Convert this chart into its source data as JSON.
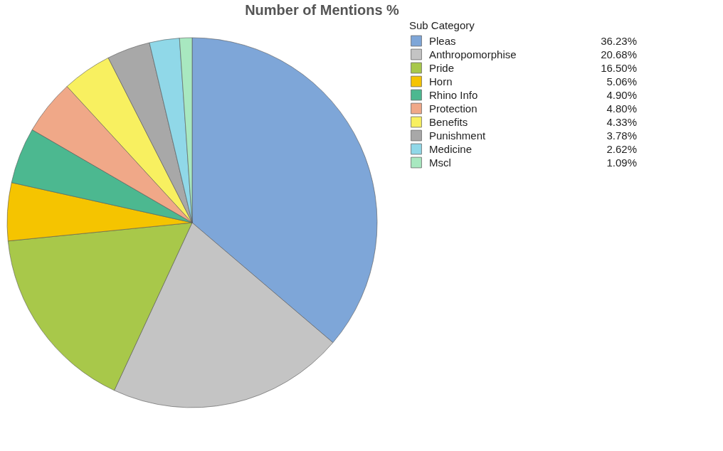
{
  "chart_data": {
    "type": "pie",
    "title": "Number of Mentions %",
    "legend_title": "Sub Category",
    "legend": "right",
    "categories": [
      "Pleas",
      "Anthropomorphise",
      "Pride",
      "Horn",
      "Rhino Info",
      "Protection",
      "Benefits",
      "Punishment",
      "Medicine",
      "Mscl"
    ],
    "values": [
      36.23,
      20.68,
      16.5,
      5.06,
      4.9,
      4.8,
      4.33,
      3.78,
      2.62,
      1.09
    ],
    "value_labels": [
      "36.23%",
      "20.68%",
      "16.50%",
      "5.06%",
      "4.90%",
      "4.80%",
      "4.33%",
      "3.78%",
      "2.62%",
      "1.09%"
    ],
    "colors": [
      "#7ea6d8",
      "#c4c4c4",
      "#a8c84a",
      "#f5c400",
      "#4cb890",
      "#f0a888",
      "#f8f060",
      "#a8a8a8",
      "#90d8e8",
      "#a8e8c0"
    ]
  }
}
